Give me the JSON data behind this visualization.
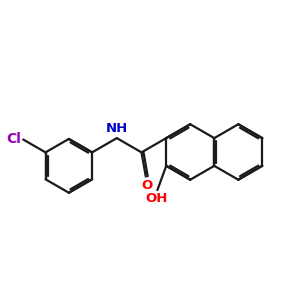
{
  "background_color": "#ffffff",
  "bond_color": "#1a1a1a",
  "bond_width": 1.6,
  "atom_colors": {
    "O": "#ff0000",
    "N": "#0000cc",
    "Cl": "#9900bb"
  },
  "font_size": 9.5,
  "figsize": [
    3.0,
    3.0
  ],
  "dpi": 100
}
